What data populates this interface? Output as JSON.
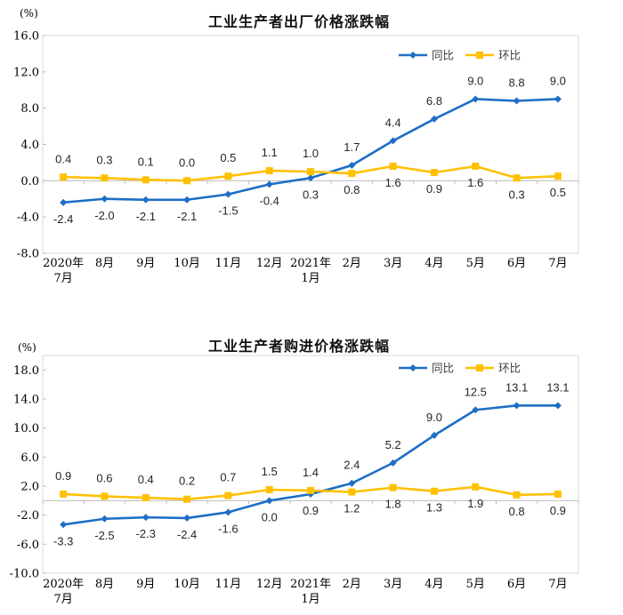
{
  "page": {
    "background": "#ffffff"
  },
  "chart_data": [
    {
      "type": "line",
      "title": "工业生产者出厂价格涨跌幅",
      "unit_label": "(%)",
      "xlabel": "",
      "ylabel": "(%)",
      "grid": "zero-baseline-only",
      "legend_position": "top-right-inside",
      "categories": [
        [
          "2020年",
          "7月"
        ],
        "8月",
        "9月",
        "10月",
        "11月",
        "12月",
        [
          "2021年",
          "1月"
        ],
        "2月",
        "3月",
        "4月",
        "5月",
        "6月",
        "7月"
      ],
      "series": [
        {
          "id": "yoy",
          "name": "同比",
          "color": "#1E6EC6",
          "marker": "diamond",
          "values": [
            -2.4,
            -2.0,
            -2.1,
            -2.1,
            -1.5,
            -0.4,
            0.3,
            1.7,
            4.4,
            6.8,
            9.0,
            8.8,
            9.0
          ]
        },
        {
          "id": "mom",
          "name": "环比",
          "color": "#FFC000",
          "marker": "square",
          "values": [
            0.4,
            0.3,
            0.1,
            0.0,
            0.5,
            1.1,
            1.0,
            0.8,
            1.6,
            0.9,
            1.6,
            0.3,
            0.5
          ]
        }
      ],
      "y_axis": {
        "ticks": [
          16.0,
          12.0,
          8.0,
          4.0,
          0.0,
          -4.0,
          -8.0
        ],
        "box_max": 16,
        "box_min": -8,
        "zero_line": 0
      },
      "colors": {
        "plot_border": "#d9d9d9",
        "axis_line": "#bdbdbd",
        "data_label": "#262626",
        "legend_text": "#404040",
        "tick_text": "#000000"
      }
    },
    {
      "type": "line",
      "title": "工业生产者购进价格涨跌幅",
      "unit_label": "(%)",
      "xlabel": "",
      "ylabel": "(%)",
      "grid": "zero-baseline-only",
      "legend_position": "top-right-inside",
      "categories": [
        [
          "2020年",
          "7月"
        ],
        "8月",
        "9月",
        "10月",
        "11月",
        "12月",
        [
          "2021年",
          "1月"
        ],
        "2月",
        "3月",
        "4月",
        "5月",
        "6月",
        "7月"
      ],
      "series": [
        {
          "id": "yoy",
          "name": "同比",
          "color": "#1E6EC6",
          "marker": "diamond",
          "values": [
            -3.3,
            -2.5,
            -2.3,
            -2.4,
            -1.6,
            0.0,
            0.9,
            2.4,
            5.2,
            9.0,
            12.5,
            13.1,
            13.1
          ]
        },
        {
          "id": "mom",
          "name": "环比",
          "color": "#FFC000",
          "marker": "square",
          "values": [
            0.9,
            0.6,
            0.4,
            0.2,
            0.7,
            1.5,
            1.4,
            1.2,
            1.8,
            1.3,
            1.9,
            0.8,
            0.9
          ]
        }
      ],
      "y_axis": {
        "ticks": [
          18.0,
          14.0,
          10.0,
          6.0,
          2.0,
          -2.0,
          -6.0,
          -10.0
        ],
        "box_max": 20,
        "box_min": -10,
        "zero_line": 0
      },
      "colors": {
        "plot_border": "#d9d9d9",
        "axis_line": "#bdbdbd",
        "data_label": "#262626",
        "legend_text": "#404040",
        "tick_text": "#000000"
      }
    }
  ]
}
